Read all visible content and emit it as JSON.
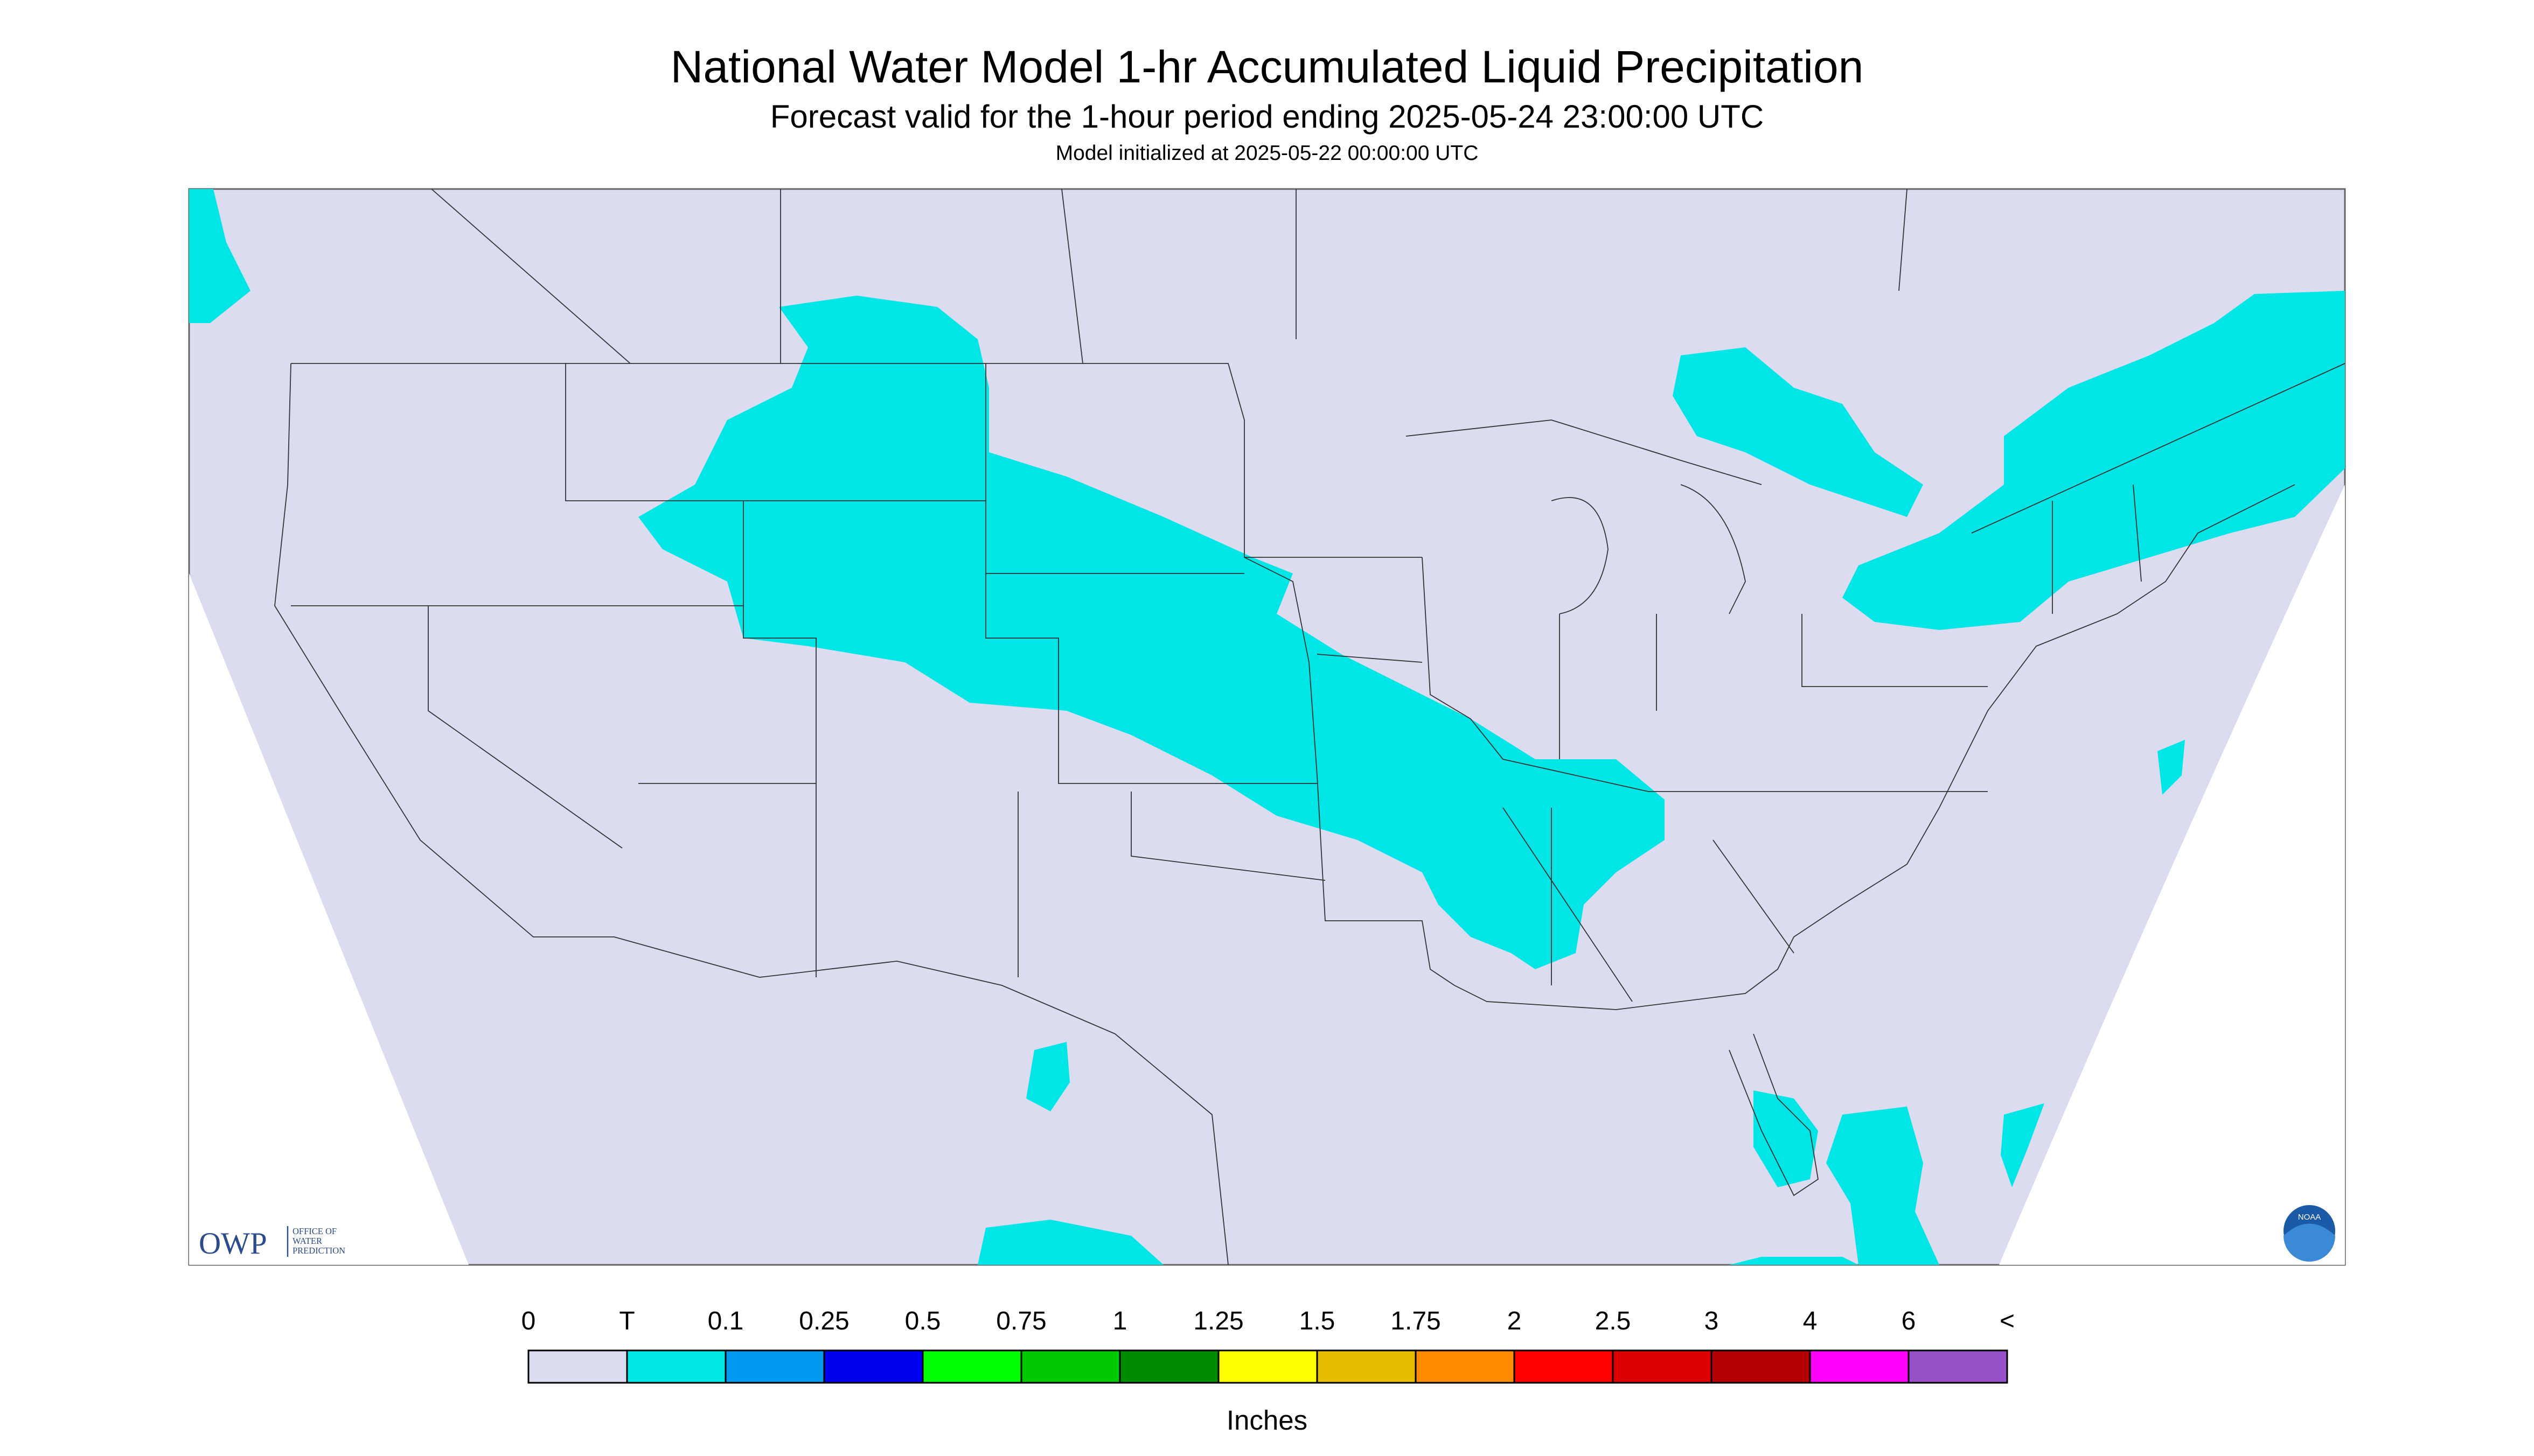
{
  "header": {
    "title": "National Water Model 1-hr Accumulated Liquid Precipitation",
    "subtitle": "Forecast valid for the 1-hour period ending 2025-05-24 23:00:00 UTC",
    "initialized": "Model initialized at 2025-05-22 00:00:00 UTC"
  },
  "logos": {
    "owp": "OWP",
    "owp_text": [
      "OFFICE OF",
      "WATER",
      "PREDICTION"
    ],
    "noaa": "NOAA"
  },
  "legend": {
    "labels": [
      "0",
      "T",
      "0.1",
      "0.25",
      "0.5",
      "0.75",
      "1",
      "1.25",
      "1.5",
      "1.75",
      "2",
      "2.5",
      "3",
      "4",
      "6",
      "<"
    ],
    "colors": [
      "#dcdcf0",
      "#00e6e6",
      "#0099f0",
      "#0000f0",
      "#00ff00",
      "#00c800",
      "#008c00",
      "#ffff00",
      "#e6be00",
      "#ff8c00",
      "#ff0000",
      "#dc0000",
      "#b40000",
      "#ff00ff",
      "#9650c8"
    ],
    "unit": "Inches"
  }
}
